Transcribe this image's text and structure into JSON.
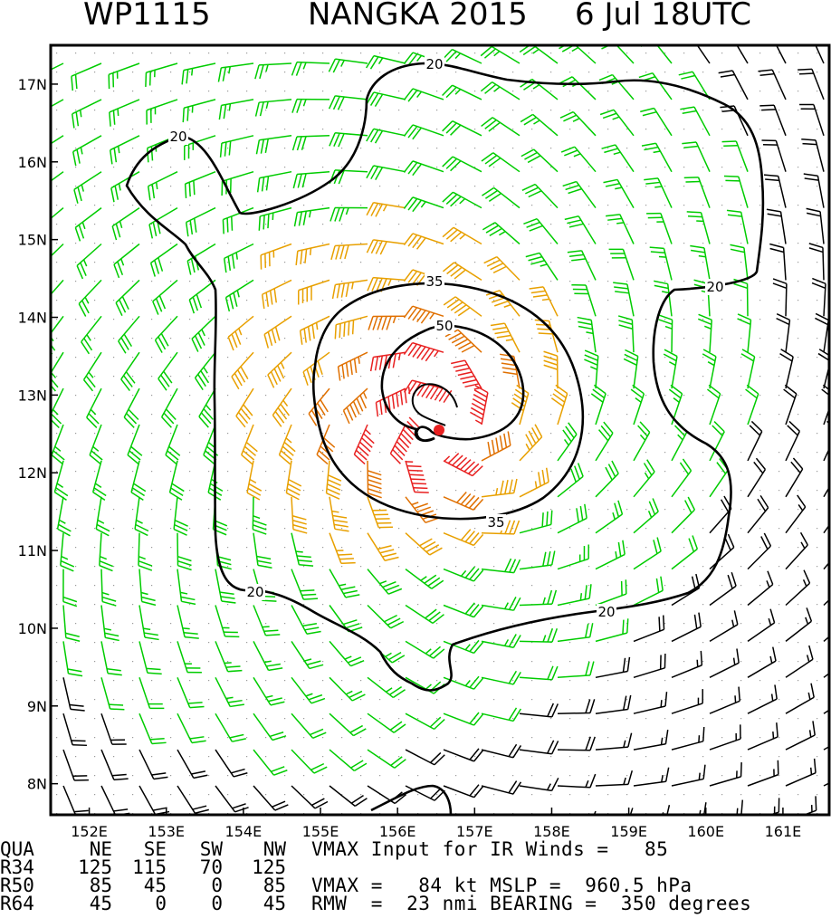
{
  "header": {
    "storm_id": "WP1115",
    "storm_name_year": "NANGKA 2015",
    "date_time": "6 Jul 18UTC"
  },
  "chart_data": {
    "type": "wind_barb_map",
    "title": "WP1115     NANGKA 2015  6 Jul 18UTC",
    "x_ticks": [
      "152E",
      "153E",
      "154E",
      "155E",
      "156E",
      "157E",
      "158E",
      "159E",
      "160E",
      "161E"
    ],
    "y_ticks": [
      "17N",
      "16N",
      "15N",
      "14N",
      "13N",
      "12N",
      "11N",
      "10N",
      "9N",
      "8N"
    ],
    "lon_range": [
      151.5,
      161.6
    ],
    "lat_range": [
      7.6,
      17.5
    ],
    "center": {
      "lon": 156.65,
      "lat": 12.55
    },
    "contour_labels": [
      "20",
      "20",
      "20",
      "20",
      "20",
      "35",
      "35",
      "50"
    ],
    "wind_levels_kt": [
      20,
      35,
      50,
      64
    ],
    "colors": {
      "calm": "#000000",
      "gale": "#00cc00",
      "storm": "#e8a000",
      "strong": "#e07000",
      "hurricane": "#e82020"
    }
  },
  "table": {
    "header": [
      "QUA",
      "NE",
      "SE",
      "SW",
      "NW"
    ],
    "rows": [
      [
        "R34",
        "125",
        "115",
        "70",
        "125"
      ],
      [
        "R50",
        "85",
        "45",
        "0",
        "85"
      ],
      [
        "R64",
        "45",
        "0",
        "0",
        "45"
      ]
    ]
  },
  "info": {
    "line1": "VMAX Input for IR Winds =   85",
    "line2": "VMAX =   84 kt MSLP =  960.5 hPa",
    "line3": "RMW  =  23 nmi BEARING =  350 degrees"
  }
}
